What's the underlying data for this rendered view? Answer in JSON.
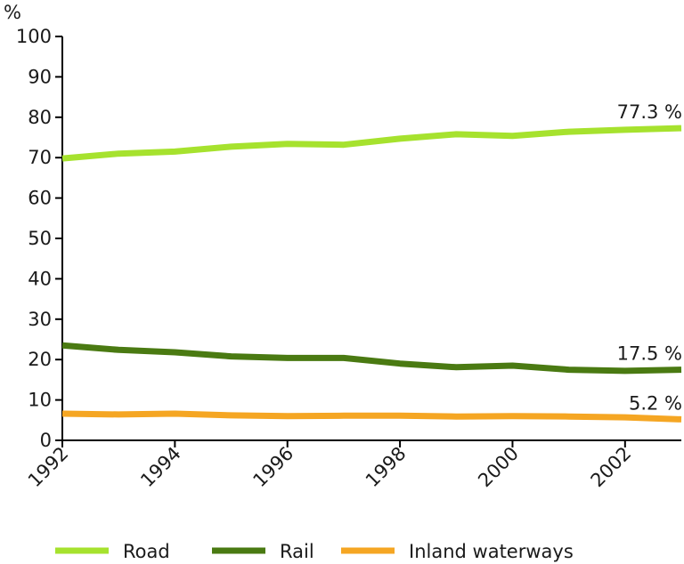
{
  "chart_data": {
    "type": "line",
    "ylabel": "%",
    "ylim": [
      0,
      100
    ],
    "yticks": [
      0,
      10,
      20,
      30,
      40,
      50,
      60,
      70,
      80,
      90,
      100
    ],
    "xlim": [
      1992,
      2003
    ],
    "xticks": [
      1992,
      1994,
      1996,
      1998,
      2000,
      2002
    ],
    "x": [
      1992,
      1993,
      1994,
      1995,
      1996,
      1997,
      1998,
      1999,
      2000,
      2001,
      2002,
      2003
    ],
    "series": [
      {
        "name": "Road",
        "color": "#a6e22e",
        "values": [
          69.8,
          71.0,
          71.5,
          72.7,
          73.4,
          73.2,
          74.7,
          75.8,
          75.4,
          76.4,
          76.9,
          77.3
        ],
        "end_label": "77.3 %"
      },
      {
        "name": "Rail",
        "color": "#4a7a12",
        "values": [
          23.5,
          22.4,
          21.8,
          20.8,
          20.4,
          20.4,
          19.0,
          18.1,
          18.5,
          17.5,
          17.2,
          17.5
        ],
        "end_label": "17.5 %"
      },
      {
        "name": "Inland waterways",
        "color": "#f5a623",
        "values": [
          6.6,
          6.4,
          6.6,
          6.2,
          6.0,
          6.1,
          6.1,
          5.9,
          6.0,
          5.9,
          5.7,
          5.2
        ],
        "end_label": "5.2 %"
      }
    ],
    "legend": "bottom",
    "grid": false
  }
}
